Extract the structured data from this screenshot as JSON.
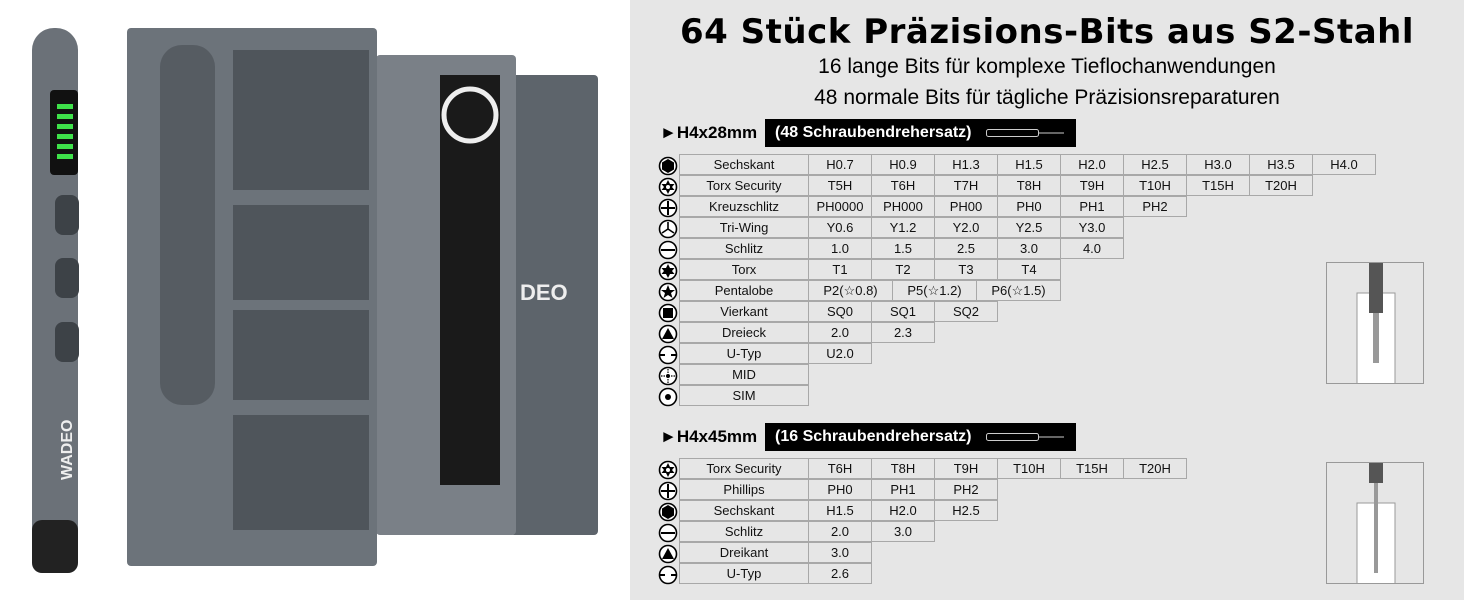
{
  "logo": {
    "pen": "WADEO",
    "case": "DEO"
  },
  "header": {
    "title": "64 Stück Präzisions-Bits aus S2-Stahl",
    "line1": "16 lange Bits für komplexe Tieflochanwendungen",
    "line2": "48 normale Bits für tägliche Präzisionsreparaturen"
  },
  "sections": [
    {
      "label": "►H4x28mm",
      "box": "(48 Schraubendrehersatz)",
      "rows": [
        {
          "icon": "hex-icon",
          "name": "Sechskant",
          "values": [
            "H0.7",
            "H0.9",
            "H1.3",
            "H1.5",
            "H2.0",
            "H2.5",
            "H3.0",
            "H3.5",
            "H4.0"
          ]
        },
        {
          "icon": "torx-security-icon",
          "name": "Torx Security",
          "values": [
            "T5H",
            "T6H",
            "T7H",
            "T8H",
            "T9H",
            "T10H",
            "T15H",
            "T20H"
          ]
        },
        {
          "icon": "phillips-icon",
          "name": "Kreuzschlitz",
          "values": [
            "PH0000",
            "PH000",
            "PH00",
            "PH0",
            "PH1",
            "PH2"
          ]
        },
        {
          "icon": "tri-wing-icon",
          "name": "Tri-Wing",
          "values": [
            "Y0.6",
            "Y1.2",
            "Y2.0",
            "Y2.5",
            "Y3.0"
          ]
        },
        {
          "icon": "slot-icon",
          "name": "Schlitz",
          "values": [
            "1.0",
            "1.5",
            "2.5",
            "3.0",
            "4.0"
          ]
        },
        {
          "icon": "torx-icon",
          "name": "Torx",
          "values": [
            "T1",
            "T2",
            "T3",
            "T4"
          ]
        },
        {
          "icon": "pentalobe-icon",
          "name": "Pentalobe",
          "values": [
            "P2(☆0.8)",
            "P5(☆1.2)",
            "P6(☆1.5)"
          ],
          "wide": true
        },
        {
          "icon": "square-icon",
          "name": "Vierkant",
          "values": [
            "SQ0",
            "SQ1",
            "SQ2"
          ]
        },
        {
          "icon": "triangle-icon",
          "name": "Dreieck",
          "values": [
            "2.0",
            "2.3"
          ]
        },
        {
          "icon": "u-type-icon",
          "name": "U-Typ",
          "values": [
            "U2.0"
          ]
        },
        {
          "icon": "mid-icon",
          "name": "MID",
          "values": []
        },
        {
          "icon": "sim-icon",
          "name": "SIM",
          "values": []
        }
      ]
    },
    {
      "label": "►H4x45mm",
      "box": "(16 Schraubendrehersatz)",
      "rows": [
        {
          "icon": "torx-security-icon",
          "name": "Torx Security",
          "values": [
            "T6H",
            "T8H",
            "T9H",
            "T10H",
            "T15H",
            "T20H"
          ]
        },
        {
          "icon": "phillips-icon",
          "name": "Phillips",
          "values": [
            "PH0",
            "PH1",
            "PH2"
          ]
        },
        {
          "icon": "hex-icon",
          "name": "Sechskant",
          "values": [
            "H1.5",
            "H2.0",
            "H2.5"
          ]
        },
        {
          "icon": "slot-icon",
          "name": "Schlitz",
          "values": [
            "2.0",
            "3.0"
          ]
        },
        {
          "icon": "triangle-icon",
          "name": "Dreikant",
          "values": [
            "3.0"
          ]
        },
        {
          "icon": "u-type-icon",
          "name": "U-Typ",
          "values": [
            "2.6"
          ]
        }
      ]
    }
  ]
}
